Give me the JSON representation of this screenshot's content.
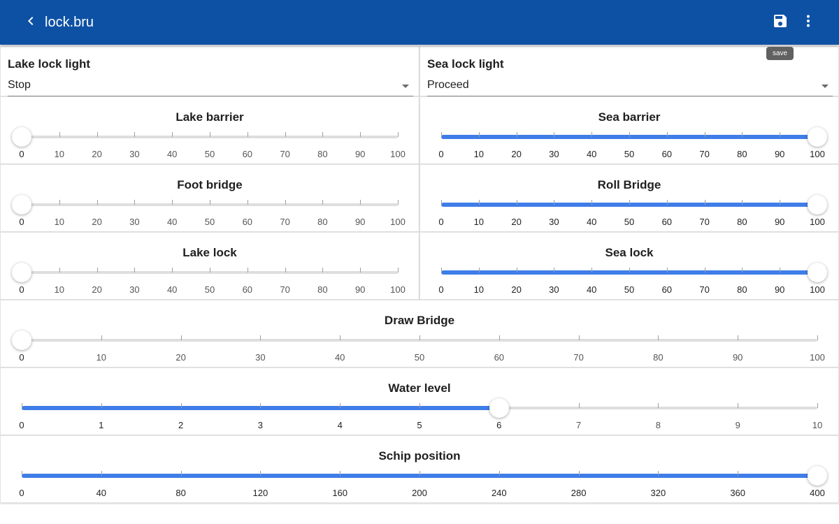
{
  "header": {
    "title": "lock.bru",
    "back_icon": "chevron-left-icon",
    "save_icon": "save-icon",
    "more_icon": "more-vert-icon",
    "save_tooltip": "save",
    "bar_color": "#0d51a4"
  },
  "colors": {
    "accent": "#3f7de8",
    "track": "#dedede"
  },
  "selects": [
    {
      "label": "Lake lock light",
      "value": "Stop"
    },
    {
      "label": "Sea lock light",
      "value": "Proceed"
    }
  ],
  "sliders": [
    {
      "title": "Lake barrier",
      "min": 0,
      "max": 100,
      "ticks": [
        0,
        10,
        20,
        30,
        40,
        50,
        60,
        70,
        80,
        90,
        100
      ],
      "value": 0
    },
    {
      "title": "Sea barrier",
      "min": 0,
      "max": 100,
      "ticks": [
        0,
        10,
        20,
        30,
        40,
        50,
        60,
        70,
        80,
        90,
        100
      ],
      "value": 100
    },
    {
      "title": "Foot bridge",
      "min": 0,
      "max": 100,
      "ticks": [
        0,
        10,
        20,
        30,
        40,
        50,
        60,
        70,
        80,
        90,
        100
      ],
      "value": 0
    },
    {
      "title": "Roll Bridge",
      "min": 0,
      "max": 100,
      "ticks": [
        0,
        10,
        20,
        30,
        40,
        50,
        60,
        70,
        80,
        90,
        100
      ],
      "value": 100
    },
    {
      "title": "Lake lock",
      "min": 0,
      "max": 100,
      "ticks": [
        0,
        10,
        20,
        30,
        40,
        50,
        60,
        70,
        80,
        90,
        100
      ],
      "value": 0
    },
    {
      "title": "Sea lock",
      "min": 0,
      "max": 100,
      "ticks": [
        0,
        10,
        20,
        30,
        40,
        50,
        60,
        70,
        80,
        90,
        100
      ],
      "value": 100
    },
    {
      "title": "Draw Bridge",
      "min": 0,
      "max": 100,
      "ticks": [
        0,
        10,
        20,
        30,
        40,
        50,
        60,
        70,
        80,
        90,
        100
      ],
      "value": 0
    },
    {
      "title": "Water level",
      "min": 0,
      "max": 10,
      "ticks": [
        0,
        1,
        2,
        3,
        4,
        5,
        6,
        7,
        8,
        9,
        10
      ],
      "value": 6
    },
    {
      "title": "Schip position",
      "min": 0,
      "max": 400,
      "ticks": [
        0,
        40,
        80,
        120,
        160,
        200,
        240,
        280,
        320,
        360,
        400
      ],
      "value": 400
    }
  ]
}
